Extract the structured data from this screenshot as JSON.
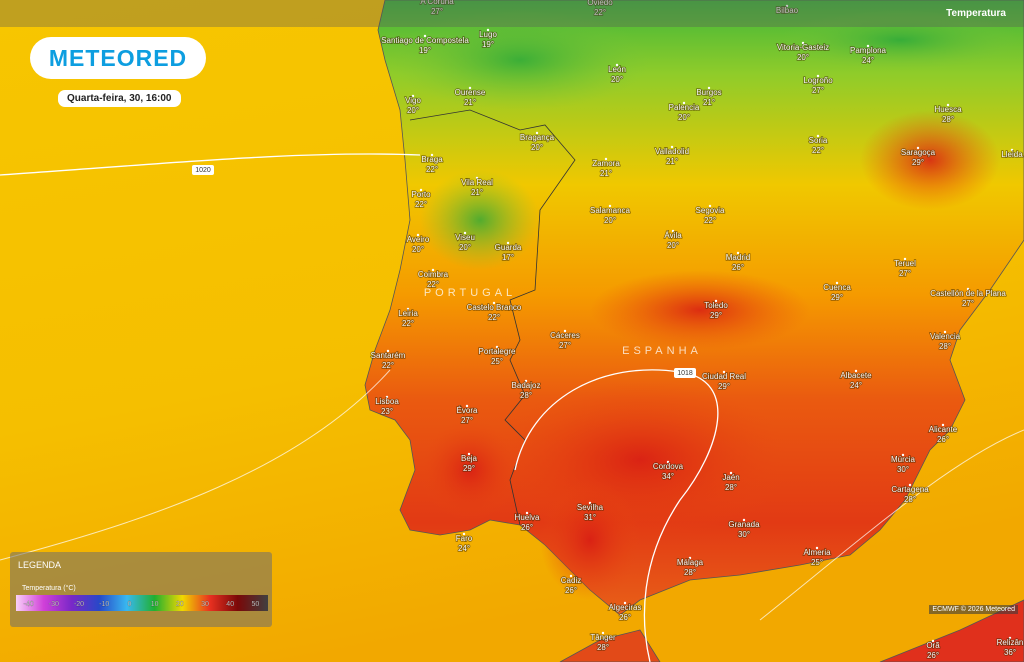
{
  "header": {
    "layer": "Temperatura"
  },
  "logo": "METEORED",
  "date": "Quarta-feira, 30, 16:00",
  "countries": [
    "PORTUGAL",
    "ESPANHA"
  ],
  "isobars": [
    1020,
    1018
  ],
  "cities": [
    {
      "name": "A Coruña",
      "temp": "27°"
    },
    {
      "name": "Oviedo",
      "temp": "22°"
    },
    {
      "name": "Bilbao"
    },
    {
      "name": "Santiago de Compostela",
      "temp": "19°"
    },
    {
      "name": "Lugo",
      "temp": "19°"
    },
    {
      "name": "Ourense",
      "temp": "21°"
    },
    {
      "name": "León",
      "temp": "20°"
    },
    {
      "name": "Burgos",
      "temp": "21°"
    },
    {
      "name": "Vitoria-Gasteiz",
      "temp": "20°"
    },
    {
      "name": "Pamplona",
      "temp": "24°"
    },
    {
      "name": "Logroño",
      "temp": "27°"
    },
    {
      "name": "Huesca",
      "temp": "28°"
    },
    {
      "name": "Vigo",
      "temp": "20°"
    },
    {
      "name": "Bragança",
      "temp": "20°"
    },
    {
      "name": "Palencia",
      "temp": "20°"
    },
    {
      "name": "Valladolid",
      "temp": "21°"
    },
    {
      "name": "Zamora",
      "temp": "21°"
    },
    {
      "name": "Soria",
      "temp": "22°"
    },
    {
      "name": "Saragoça",
      "temp": "29°"
    },
    {
      "name": "Lleida"
    },
    {
      "name": "Braga",
      "temp": "22°"
    },
    {
      "name": "Vila Real",
      "temp": "21°"
    },
    {
      "name": "Porto",
      "temp": "22°"
    },
    {
      "name": "Salamanca",
      "temp": "20°"
    },
    {
      "name": "Segovia",
      "temp": "22°"
    },
    {
      "name": "Aveiro",
      "temp": "20°"
    },
    {
      "name": "Viseu",
      "temp": "20°"
    },
    {
      "name": "Guarda",
      "temp": "17°"
    },
    {
      "name": "Ávila",
      "temp": "20°"
    },
    {
      "name": "Madrid",
      "temp": "26°"
    },
    {
      "name": "Teruel",
      "temp": "27°"
    },
    {
      "name": "Coimbra",
      "temp": "22°"
    },
    {
      "name": "Cuenca",
      "temp": "29°"
    },
    {
      "name": "Castellón de la Plana",
      "temp": "27°"
    },
    {
      "name": "Castelo Branco",
      "temp": "22°"
    },
    {
      "name": "Leiria",
      "temp": "22°"
    },
    {
      "name": "Toledo",
      "temp": "29°"
    },
    {
      "name": "Cáceres",
      "temp": "27°"
    },
    {
      "name": "Valencia",
      "temp": "28°"
    },
    {
      "name": "Santarém",
      "temp": "22°"
    },
    {
      "name": "Portalegre",
      "temp": "25°"
    },
    {
      "name": "Ciudad Real",
      "temp": "29°"
    },
    {
      "name": "Albacete",
      "temp": "24°"
    },
    {
      "name": "Badajoz",
      "temp": "28°"
    },
    {
      "name": "Lisboa",
      "temp": "23°"
    },
    {
      "name": "Évora",
      "temp": "27°"
    },
    {
      "name": "Alicante",
      "temp": "26°"
    },
    {
      "name": "Beja",
      "temp": "29°"
    },
    {
      "name": "Cordova",
      "temp": "34°"
    },
    {
      "name": "Jaén",
      "temp": "28°"
    },
    {
      "name": "Múrcia",
      "temp": "30°"
    },
    {
      "name": "Cartagena",
      "temp": "28°"
    },
    {
      "name": "Sevilha",
      "temp": "31°"
    },
    {
      "name": "Huelva",
      "temp": "26°"
    },
    {
      "name": "Granada",
      "temp": "30°"
    },
    {
      "name": "Faro",
      "temp": "24°"
    },
    {
      "name": "Almeria",
      "temp": "25°"
    },
    {
      "name": "Málaga",
      "temp": "28°"
    },
    {
      "name": "Cadiz",
      "temp": "26°"
    },
    {
      "name": "Algeciras",
      "temp": "26°"
    },
    {
      "name": "Tânger",
      "temp": "28°"
    },
    {
      "name": "Orã",
      "temp": "26°"
    },
    {
      "name": "Relizân",
      "temp": "36°"
    }
  ],
  "legend": {
    "title": "LEGENDA",
    "subtitle": "Temperatura (°C)",
    "scale": [
      -40,
      -30,
      -20,
      -10,
      0,
      10,
      20,
      30,
      40,
      50
    ]
  },
  "credit": "ECMWF © 2026 Meteored"
}
